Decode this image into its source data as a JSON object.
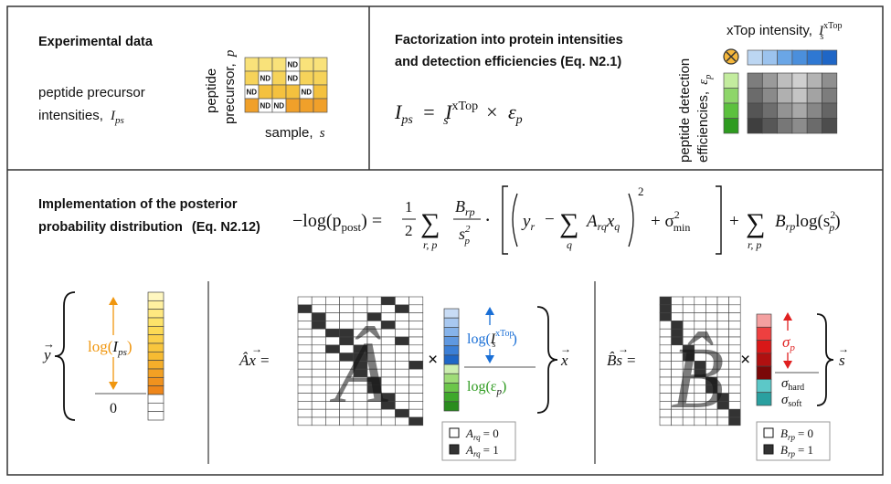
{
  "panels": {
    "experimental": {
      "title": "Experimental data",
      "line1": "peptide precursor",
      "line2": "intensities,",
      "line2_sym": "I",
      "line2_sub": "ps",
      "ylabel1": "peptide",
      "ylabel2": "precursor,",
      "ylabel2_sym": "p",
      "xlabel": "sample,",
      "xlabel_sym": "s",
      "nd_label": "ND",
      "nd_cells": [
        [
          0,
          3
        ],
        [
          1,
          1
        ],
        [
          1,
          3
        ],
        [
          2,
          0
        ],
        [
          2,
          4
        ],
        [
          3,
          1
        ],
        [
          3,
          2
        ]
      ],
      "row_colors": [
        "#f9e27a",
        "#f6d35a",
        "#f4c13e",
        "#f0a02a"
      ]
    },
    "factorization": {
      "title_line1": "Factorization into protein intensities",
      "title_line2": "and detection efficiencies (Eq. N2.1)",
      "eq_lhs": "I",
      "eq_lhs_sub": "ps",
      "eq_eq": "=",
      "eq_I": "I",
      "eq_I_sub": "s",
      "eq_I_sup": "xTop",
      "eq_times": "×",
      "eq_eps": "ε",
      "eq_eps_sub": "p",
      "xtop_label": "xTop intensity,",
      "xtop_sym": "I",
      "xtop_sub": "s",
      "xtop_sup": "xTop",
      "eff_label1": "peptide detection",
      "eff_label2": "efficiencies,",
      "eff_sym": "ε",
      "eff_sub": "p",
      "times_symbol": "⊗",
      "blue_colors": [
        "#bcd6f2",
        "#9cc3ee",
        "#6aa6e6",
        "#4b8fdc",
        "#2f78d3",
        "#1f66c6"
      ],
      "green_colors": [
        "#c3ec9e",
        "#8ed66a",
        "#5cc13e",
        "#2e9b1f"
      ],
      "gray_rows": [
        [
          "#7d7d7d",
          "#9a9a9a",
          "#bdbdbd",
          "#cfcfcf",
          "#b3b3b3",
          "#8f8f8f"
        ],
        [
          "#6b6b6b",
          "#8a8a8a",
          "#b0b0b0",
          "#c4c4c4",
          "#a3a3a3",
          "#7d7d7d"
        ],
        [
          "#555",
          "#6e6e6e",
          "#939393",
          "#a8a8a8",
          "#878787",
          "#656565"
        ],
        [
          "#3f3f3f",
          "#575757",
          "#777",
          "#8c8c8c",
          "#6b6b6b",
          "#4d4d4d"
        ]
      ]
    },
    "posterior": {
      "title_line1": "Implementation of the posterior",
      "title_line2": "probability distribution",
      "title_eq": "(Eq. N2.12)",
      "eq_left": "−log(p",
      "eq_post": "post",
      "eq_eq": ") =",
      "eq_half_num": "1",
      "eq_half_den": "2",
      "eq_sum": "∑",
      "eq_sum_sub": "r, p",
      "eq_frac_num": "B",
      "eq_frac_num_sub": "rp",
      "eq_frac_den": "s",
      "eq_frac_den_sub": "p",
      "eq_frac_den_sup": "2",
      "eq_dot": "·",
      "eq_y": "y",
      "eq_y_sub": "r",
      "eq_minus": "−",
      "eq_sum_q": "q",
      "eq_A": "A",
      "eq_A_sub": "rq",
      "eq_x": "x",
      "eq_x_sub": "q",
      "eq_sq": "2",
      "eq_plus_sigma": "+ σ",
      "eq_sigma_sub": "min",
      "eq_sigma_sup": "2",
      "eq_plus": "+",
      "eq_B": "B",
      "eq_B_sub": "rp",
      "eq_log": "log(s",
      "eq_log_sub": "p",
      "eq_log_sup": "2",
      "eq_close": ")",
      "y_vec": "y",
      "y_log": "log(",
      "y_I": "I",
      "y_I_sub": "ps",
      "y_close": ")",
      "zero": "0",
      "orange": "#f0960e",
      "y_colors": [
        "#fff7c0",
        "#fff0a0",
        "#ffe880",
        "#fde36a",
        "#fcda55",
        "#fbd04a",
        "#f9c63d",
        "#f7bb32",
        "#f5ae2a",
        "#f2a024",
        "#f0921e",
        "#ee861a",
        "#ffffff",
        "#ffffff",
        "#ffffff"
      ],
      "Ax_lhs": "Âx =",
      "A_hat": "Â",
      "times": "×",
      "x_vec": "x",
      "x_log": "log(",
      "x_I": "I",
      "x_I_sub": "s",
      "x_I_sup": "xTop",
      "x_close": ")",
      "x_eps": "log(ε",
      "x_eps_sub": "p",
      "x_eps_close": ")",
      "blue": "#1a6fd6",
      "green": "#2e9b1f",
      "x_colors": [
        "#c8dcf5",
        "#a8c8f0",
        "#86b3ea",
        "#5f98e0",
        "#3c7fd6",
        "#1f66c6",
        "#cdeeb0",
        "#9fdc78",
        "#6cc64a",
        "#3ea82b",
        "#2a8d1e"
      ],
      "Bs_lhs": "B̂s =",
      "B_hat": "B̂",
      "s_vec": "s",
      "sigma_p": "σ",
      "sigma_p_sub": "p",
      "sigma_hard": "σ",
      "sigma_hard_sub": "hard",
      "sigma_soft": "σ",
      "sigma_soft_sub": "soft",
      "red": "#e02020",
      "s_colors": [
        "#f4a0a0",
        "#ee4040",
        "#d81818",
        "#b01010",
        "#7a0808",
        "#5cc8c8",
        "#2aa0a0"
      ],
      "legendA": [
        {
          "sym": "A",
          "sub": "rq",
          "val": "= 0"
        },
        {
          "sym": "A",
          "sub": "rq",
          "val": "= 1"
        }
      ],
      "legendB": [
        {
          "sym": "B",
          "sub": "rp",
          "val": "= 0"
        },
        {
          "sym": "B",
          "sub": "rp",
          "val": "= 1"
        }
      ]
    }
  }
}
